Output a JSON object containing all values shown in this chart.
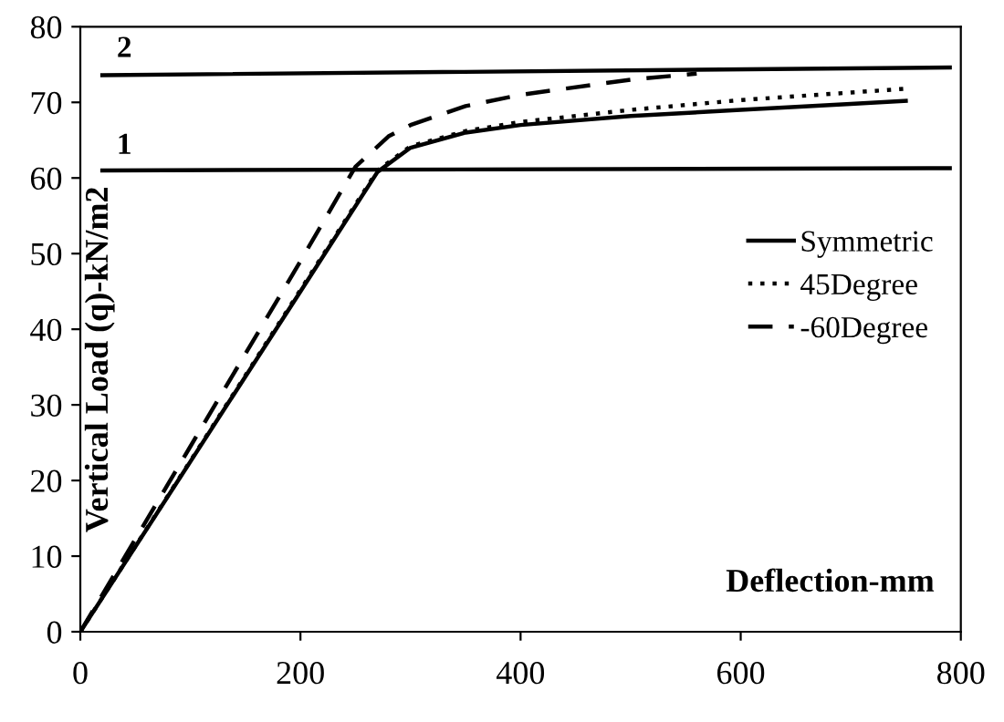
{
  "chart_data": {
    "type": "line",
    "xlabel": "Deflection-mm",
    "ylabel": "Vertical Load (q)-kN/m2",
    "xlim": [
      0,
      800
    ],
    "ylim": [
      0,
      80
    ],
    "xticks": [
      0,
      200,
      400,
      600,
      800
    ],
    "yticks": [
      0,
      10,
      20,
      30,
      40,
      50,
      60,
      70,
      80
    ],
    "grid": false,
    "legend": "right",
    "marker": "none",
    "series": [
      {
        "name": "Symmetric",
        "color": "#000000",
        "line_style": "solid",
        "x": [
          0,
          100,
          200,
          270,
          300,
          350,
          400,
          500,
          600,
          700,
          750
        ],
        "values": [
          0,
          22.5,
          45,
          60.8,
          64,
          66,
          67,
          68.2,
          69,
          69.8,
          70.2
        ]
      },
      {
        "name": "45Degree",
        "color": "#000000",
        "line_style": "dotted",
        "x": [
          0,
          100,
          200,
          270,
          300,
          350,
          400,
          500,
          600,
          700,
          750
        ],
        "values": [
          0,
          22.6,
          45.2,
          61,
          64.2,
          66.2,
          67.4,
          69,
          70.3,
          71.3,
          71.8
        ]
      },
      {
        "name": "-60Degree",
        "color": "#000000",
        "line_style": "dashed",
        "x": [
          0,
          100,
          200,
          250,
          280,
          300,
          350,
          400,
          500,
          560
        ],
        "values": [
          0,
          24.5,
          49,
          61.5,
          65.5,
          67,
          69.5,
          71,
          73,
          73.8
        ]
      },
      {
        "color": "#000000",
        "line_style": "solid",
        "x": [
          20,
          790
        ],
        "values": [
          61,
          61.3
        ]
      },
      {
        "color": "#000000",
        "line_style": "solid",
        "x": [
          20,
          790
        ],
        "values": [
          73.6,
          74.6
        ]
      }
    ],
    "annotations": [
      {
        "text": "1",
        "x": 40,
        "y": 61
      },
      {
        "text": "2",
        "x": 40,
        "y": 73.8
      }
    ]
  }
}
